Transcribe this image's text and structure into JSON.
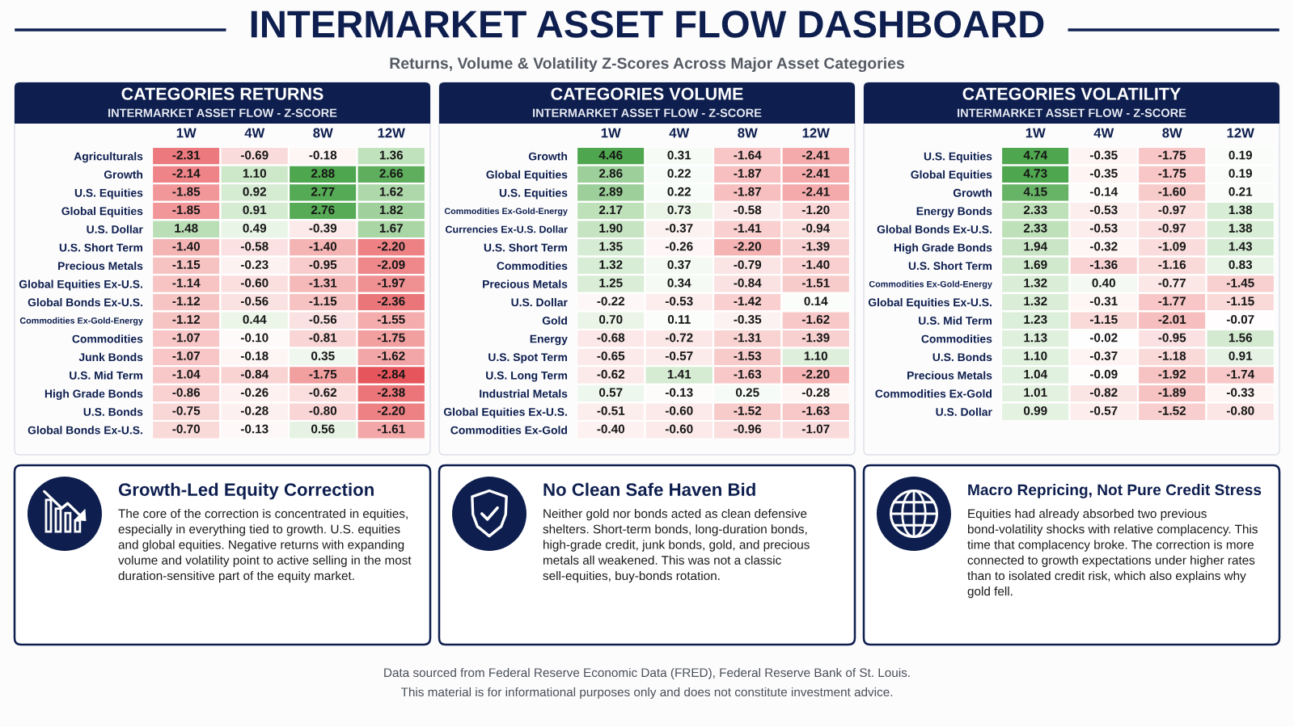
{
  "chart_data": [
    {
      "type": "other",
      "title": "INTERMARKET ASSET FLOW DASHBOARD",
      "subtitle": "Returns, Volume & Volatility Z-Scores Across Major Asset Categories"
    },
    {
      "type": "heatmap",
      "title": "CATEGORIES RETURNS",
      "subtitle": "INTERMARKET ASSET FLOW - Z-SCORE",
      "categories": [
        "1W",
        "4W",
        "8W",
        "12W"
      ],
      "y_categories": [
        "Agriculturals",
        "Growth",
        "U.S. Equities",
        "Global Equities",
        "U.S. Dollar",
        "U.S. Short Term",
        "Precious Metals",
        "Global Equities Ex-U.S.",
        "Global Bonds Ex-U.S.",
        "Commodities Ex-Gold-Energy",
        "Commodities",
        "Junk Bonds",
        "U.S. Mid Term",
        "High Grade Bonds",
        "U.S. Bonds",
        "Global Bonds Ex-U.S."
      ],
      "cells": [
        [
          -2.31,
          -0.69,
          -0.18,
          1.36
        ],
        [
          -2.14,
          1.1,
          2.88,
          2.66
        ],
        [
          -1.85,
          0.92,
          2.77,
          1.62
        ],
        [
          -1.85,
          0.91,
          2.76,
          1.82
        ],
        [
          1.48,
          0.49,
          -0.39,
          1.67
        ],
        [
          -1.4,
          -0.58,
          -1.4,
          -2.2
        ],
        [
          -1.15,
          -0.23,
          -0.95,
          -2.09
        ],
        [
          -1.14,
          -0.6,
          -1.31,
          -1.97
        ],
        [
          -1.12,
          -0.56,
          -1.15,
          -2.36
        ],
        [
          -1.12,
          0.44,
          -0.56,
          -1.55
        ],
        [
          -1.07,
          -0.1,
          -0.81,
          -1.75
        ],
        [
          -1.07,
          -0.18,
          0.35,
          -1.62
        ],
        [
          -1.04,
          -0.84,
          -1.75,
          -2.84
        ],
        [
          -0.86,
          -0.26,
          -0.62,
          -2.38
        ],
        [
          -0.75,
          -0.28,
          -0.8,
          -2.2
        ],
        [
          -0.7,
          -0.13,
          0.56,
          -1.61
        ]
      ],
      "cell_labels": [
        [
          "-2.31",
          "-0.69",
          "-0.18",
          "1.36"
        ],
        [
          "-2.14",
          "1.10",
          "2.88",
          "2.66"
        ],
        [
          "-1.85",
          "0.92",
          "2.77",
          "1.62"
        ],
        [
          "-1.85",
          "0.91",
          "2.76",
          "1.82"
        ],
        [
          "1.48",
          "0.49",
          "-0.39",
          "1.67"
        ],
        [
          "-1.40",
          "-0.58",
          "-1.40",
          "-2.20"
        ],
        [
          "-1.15",
          "-0.23",
          "-0.95",
          "-2.09"
        ],
        [
          "-1.14",
          "-0.60",
          "-1.31",
          "-1.97"
        ],
        [
          "-1.12",
          "-0.56",
          "-1.15",
          "-2.36"
        ],
        [
          "-1.12",
          "0.44",
          "-0.56",
          "-1.55"
        ],
        [
          "-1.07",
          "-0.10",
          "-0.81",
          "-1.75"
        ],
        [
          "-1.07",
          "-0.18",
          "0.35",
          "-1.62"
        ],
        [
          "-1.04",
          "-0.84",
          "-1.75",
          "-2.84"
        ],
        [
          "-0.86",
          "-0.26",
          "-0.62",
          "-2.38"
        ],
        [
          "-0.75",
          "-0.28",
          "-0.80",
          "-2.20"
        ],
        [
          "-0.70",
          "-0.13",
          "0.56",
          "-1.61"
        ]
      ]
    },
    {
      "type": "heatmap",
      "title": "CATEGORIES VOLUME",
      "subtitle": "INTERMARKET ASSET FLOW - Z-SCORE",
      "categories": [
        "1W",
        "4W",
        "8W",
        "12W"
      ],
      "y_categories": [
        "Growth",
        "Global Equities",
        "U.S. Equities",
        "Commodities Ex-Gold-Energy",
        "Currencies Ex-U.S. Dollar",
        "U.S. Short Term",
        "Commodities",
        "Precious Metals",
        "U.S. Dollar",
        "Gold",
        "Energy",
        "U.S. Spot Term",
        "U.S. Long Term",
        "Industrial Metals",
        "Global Equities Ex-U.S.",
        "Commodities Ex-Gold"
      ],
      "cells": [
        [
          4.46,
          0.31,
          -1.64,
          -2.41
        ],
        [
          2.86,
          0.22,
          -1.87,
          -2.41
        ],
        [
          2.89,
          0.22,
          -1.87,
          -2.41
        ],
        [
          2.17,
          0.73,
          -0.58,
          -1.2
        ],
        [
          1.9,
          -0.37,
          -1.41,
          -0.94
        ],
        [
          1.35,
          -0.26,
          -2.2,
          -1.39
        ],
        [
          1.32,
          0.37,
          -0.79,
          -1.4
        ],
        [
          1.25,
          0.34,
          -0.84,
          -1.51
        ],
        [
          -0.22,
          -0.53,
          -1.42,
          0.14
        ],
        [
          0.7,
          0.11,
          -0.35,
          -1.62
        ],
        [
          -0.68,
          -0.72,
          -1.31,
          -1.39
        ],
        [
          -0.65,
          -0.57,
          -1.53,
          1.1
        ],
        [
          -0.62,
          1.41,
          -1.63,
          -2.2
        ],
        [
          0.57,
          -0.13,
          0.25,
          -0.28
        ],
        [
          -0.51,
          -0.6,
          -1.52,
          -1.63
        ],
        [
          -0.4,
          -0.6,
          -0.96,
          -1.07
        ]
      ],
      "cell_labels": [
        [
          "4.46",
          "0.31",
          "-1.64",
          "-2.41"
        ],
        [
          "2.86",
          "0.22",
          "-1.87",
          "-2.41"
        ],
        [
          "2.89",
          "0.22",
          "-1.87",
          "-2.41"
        ],
        [
          "2.17",
          "0.73",
          "-0.58",
          "-1.20"
        ],
        [
          "1.90",
          "-0.37",
          "-1.41",
          "-0.94"
        ],
        [
          "1.35",
          "-0.26",
          "-2.20",
          "-1.39"
        ],
        [
          "1.32",
          "0.37",
          "-0.79",
          "-1.40"
        ],
        [
          "1.25",
          "0.34",
          "-0.84",
          "-1.51"
        ],
        [
          "-0.22",
          "-0.53",
          "-1.42",
          "0.14"
        ],
        [
          "0.70",
          "0.11",
          "-0.35",
          "-1.62"
        ],
        [
          "-0.68",
          "-0.72",
          "-1.31",
          "-1.39"
        ],
        [
          "-0.65",
          "-0.57",
          "-1.53",
          "1.10"
        ],
        [
          "-0.62",
          "1.41",
          "-1.63",
          "-2.20"
        ],
        [
          "0.57",
          "-0.13",
          "0.25",
          "-0.28"
        ],
        [
          "-0.51",
          "-0.60",
          "-1.52",
          "-1.63"
        ],
        [
          "-0.40",
          "-0.60",
          "-0.96",
          "-1.07"
        ]
      ]
    },
    {
      "type": "heatmap",
      "title": "CATEGORIES VOLATILITY",
      "subtitle": "INTERMARKET ASSET FLOW - Z-SCORE",
      "categories": [
        "1W",
        "4W",
        "8W",
        "12W"
      ],
      "y_categories": [
        "U.S. Equities",
        "Global Equities",
        "Growth",
        "Energy Bonds",
        "Global Bonds Ex-U.S.",
        "High Grade Bonds",
        "U.S. Short Term",
        "Commodities Ex-Gold-Energy",
        "Global Equities Ex-U.S.",
        "U.S. Mid Term",
        "Commodities",
        "U.S. Bonds",
        "Precious Metals",
        "Commodities Ex-Gold",
        "U.S. Dollar"
      ],
      "cells": [
        [
          4.74,
          -0.35,
          -1.75,
          0.19
        ],
        [
          4.73,
          -0.35,
          -1.75,
          0.19
        ],
        [
          4.15,
          -0.14,
          -1.6,
          0.21
        ],
        [
          2.33,
          -0.53,
          -0.97,
          1.38
        ],
        [
          2.33,
          -0.53,
          -0.97,
          1.38
        ],
        [
          1.94,
          -0.32,
          -1.09,
          1.43
        ],
        [
          1.69,
          -1.36,
          -1.16,
          0.83
        ],
        [
          1.32,
          0.4,
          -0.77,
          -1.45
        ],
        [
          1.32,
          -0.31,
          -1.77,
          -1.15
        ],
        [
          1.23,
          -1.15,
          -2.01,
          -0.07
        ],
        [
          1.13,
          -0.02,
          -0.95,
          1.56
        ],
        [
          1.1,
          -0.37,
          -1.18,
          0.91
        ],
        [
          1.04,
          -0.09,
          -1.92,
          -1.74
        ],
        [
          1.01,
          -0.82,
          -1.89,
          -0.33
        ],
        [
          0.99,
          -0.57,
          -1.52,
          -0.8
        ]
      ],
      "cell_labels": [
        [
          "4.74",
          "-0.35",
          "-1.75",
          "0.19"
        ],
        [
          "4.73",
          "-0.35",
          "-1.75",
          "0.19"
        ],
        [
          "4.15",
          "-0.14",
          "-1.60",
          "0.21"
        ],
        [
          "2.33",
          "-0.53",
          "-0.97",
          "1.38"
        ],
        [
          "2.33",
          "-0.53",
          "-0.97",
          "1.38"
        ],
        [
          "1.94",
          "-0.32",
          "-1.09",
          "1.43"
        ],
        [
          "1.69",
          "-1.36",
          "-1.16",
          "0.83"
        ],
        [
          "1.32",
          "0.40",
          "-0.77",
          "-1.45"
        ],
        [
          "1.32",
          "-0.31",
          "-1.77",
          "-1.15"
        ],
        [
          "1.23",
          "-1.15",
          "-2.01",
          "-0.07"
        ],
        [
          "1.13",
          "-0.02",
          "-0.95",
          "1.56"
        ],
        [
          "1.10",
          "-0.37",
          "-1.18",
          "0.91"
        ],
        [
          "1.04",
          "-0.09",
          "-1.92",
          "-1.74"
        ],
        [
          "1.01",
          "-0.82",
          "-1.89",
          "-0.33"
        ],
        [
          "0.99",
          "-0.57",
          "-1.52",
          "-0.80"
        ]
      ]
    },
    {
      "type": "other",
      "title": "Growth-Led Equity Correction",
      "annotations": [
        "The core of the correction is concentrated in equities, especially in everything tied to growth. U.S. equities and global equities. Negative returns with expanding volume and volatility point to active selling in the most duration-sensitive part of the equity market."
      ]
    },
    {
      "type": "other",
      "title": "No Clean Safe Haven Bid",
      "annotations": [
        "Neither gold nor bonds acted as clean defensive shelters. Short-term bonds, long-duration bonds, high-grade credit, junk bonds, gold, and precious metals all weakened. This was not a classic sell-equities, buy-bonds rotation."
      ]
    },
    {
      "type": "other",
      "title": "Macro Repricing, Not Pure Credit Stress",
      "annotations": [
        "Equities had already absorbed two previous bond-volatility shocks with relative complacency. This time that complacency broke. The correction is more connected to growth expectations under higher rates than to isolated credit risk, which also explains why gold fell."
      ]
    },
    {
      "type": "other",
      "annotations": [
        "Data sourced from Federal Reserve Economic Data (FRED), Federal Reserve Bank of St. Louis.",
        "This material is for informational purposes only and does not constitute investment advice."
      ]
    }
  ]
}
